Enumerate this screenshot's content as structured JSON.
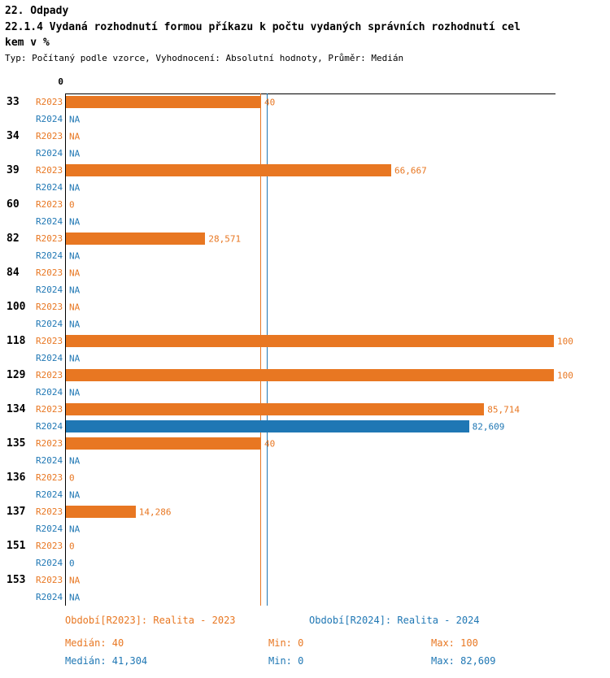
{
  "header": {
    "title": "22. Odpady",
    "subtitle_line1": "22.1.4 Vydaná rozhodnutí formou příkazu k počtu vydaných správních rozhodnutí cel",
    "subtitle_line2": "kem v %",
    "meta": "Typ: Počítaný podle vzorce, Vyhodnocení: Absolutní hodnoty, Průměr: Medián"
  },
  "chart_data": {
    "type": "bar",
    "orientation": "horizontal",
    "title": "22.1.4 Vydaná rozhodnutí formou příkazu k počtu vydaných správních rozhodnutí celkem v %",
    "axis": {
      "zero_label": "0",
      "min": 0,
      "max": 100,
      "grid": false
    },
    "series": {
      "r2023": "R2023",
      "r2024": "R2024"
    },
    "colors": {
      "r2023": "#E87722",
      "r2024": "#1F77B4",
      "axis": "#000000"
    },
    "medians": {
      "r2023": 40,
      "r2024": 41.304
    },
    "rows": [
      {
        "category": "33",
        "r2023": {
          "value": 40,
          "label": "40"
        },
        "r2024": {
          "value": null,
          "label": "NA"
        }
      },
      {
        "category": "34",
        "r2023": {
          "value": null,
          "label": "NA"
        },
        "r2024": {
          "value": null,
          "label": "NA"
        }
      },
      {
        "category": "39",
        "r2023": {
          "value": 66.667,
          "label": "66,667"
        },
        "r2024": {
          "value": null,
          "label": "NA"
        }
      },
      {
        "category": "60",
        "r2023": {
          "value": 0,
          "label": "0"
        },
        "r2024": {
          "value": null,
          "label": "NA"
        }
      },
      {
        "category": "82",
        "r2023": {
          "value": 28.571,
          "label": "28,571"
        },
        "r2024": {
          "value": null,
          "label": "NA"
        }
      },
      {
        "category": "84",
        "r2023": {
          "value": null,
          "label": "NA"
        },
        "r2024": {
          "value": null,
          "label": "NA"
        }
      },
      {
        "category": "100",
        "r2023": {
          "value": null,
          "label": "NA"
        },
        "r2024": {
          "value": null,
          "label": "NA"
        }
      },
      {
        "category": "118",
        "r2023": {
          "value": 100,
          "label": "100"
        },
        "r2024": {
          "value": null,
          "label": "NA"
        }
      },
      {
        "category": "129",
        "r2023": {
          "value": 100,
          "label": "100"
        },
        "r2024": {
          "value": null,
          "label": "NA"
        }
      },
      {
        "category": "134",
        "r2023": {
          "value": 85.714,
          "label": "85,714"
        },
        "r2024": {
          "value": 82.609,
          "label": "82,609"
        }
      },
      {
        "category": "135",
        "r2023": {
          "value": 40,
          "label": "40"
        },
        "r2024": {
          "value": null,
          "label": "NA"
        }
      },
      {
        "category": "136",
        "r2023": {
          "value": 0,
          "label": "0"
        },
        "r2024": {
          "value": null,
          "label": "NA"
        }
      },
      {
        "category": "137",
        "r2023": {
          "value": 14.286,
          "label": "14,286"
        },
        "r2024": {
          "value": null,
          "label": "NA"
        }
      },
      {
        "category": "151",
        "r2023": {
          "value": 0,
          "label": "0"
        },
        "r2024": {
          "value": 0,
          "label": "0"
        }
      },
      {
        "category": "153",
        "r2023": {
          "value": null,
          "label": "NA"
        },
        "r2024": {
          "value": null,
          "label": "NA"
        }
      }
    ]
  },
  "footer": {
    "period_2023": "Období[R2023]: Realita - 2023",
    "period_2024": "Období[R2024]: Realita - 2024",
    "stats_2023": {
      "median": "Medián: 40",
      "min": "Min: 0",
      "max": "Max: 100"
    },
    "stats_2024": {
      "median": "Medián: 41,304",
      "min": "Min: 0",
      "max": "Max: 82,609"
    }
  }
}
